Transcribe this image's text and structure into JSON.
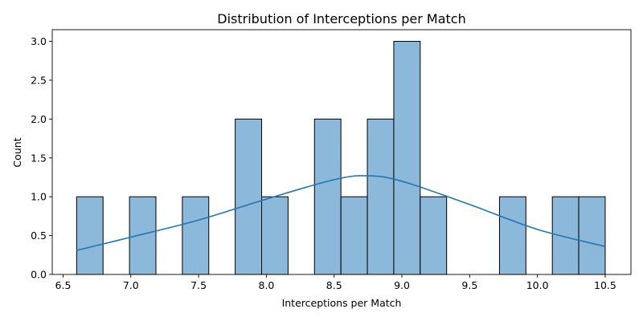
{
  "chart_data": {
    "type": "bar",
    "subtype": "histogram",
    "title": "Distribution of Interceptions per Match",
    "xlabel": "Interceptions per Match",
    "ylabel": "Count",
    "xlim": [
      6.42,
      10.69
    ],
    "ylim": [
      0.0,
      3.15
    ],
    "xticks": [
      6.5,
      7.0,
      7.5,
      8.0,
      8.5,
      9.0,
      9.5,
      10.0,
      10.5
    ],
    "xtick_labels": [
      "6.5",
      "7.0",
      "7.5",
      "8.0",
      "8.5",
      "9.0",
      "9.5",
      "10.0",
      "10.5"
    ],
    "yticks": [
      0.0,
      0.5,
      1.0,
      1.5,
      2.0,
      2.5,
      3.0
    ],
    "ytick_labels": [
      "0.0",
      "0.5",
      "1.0",
      "1.5",
      "2.0",
      "2.5",
      "3.0"
    ],
    "bins": [
      {
        "x0": 6.6,
        "x1": 6.795,
        "count": 1
      },
      {
        "x0": 6.795,
        "x1": 6.99,
        "count": 0
      },
      {
        "x0": 6.99,
        "x1": 7.185,
        "count": 1
      },
      {
        "x0": 7.185,
        "x1": 7.38,
        "count": 0
      },
      {
        "x0": 7.38,
        "x1": 7.575,
        "count": 1
      },
      {
        "x0": 7.575,
        "x1": 7.77,
        "count": 0
      },
      {
        "x0": 7.77,
        "x1": 7.965,
        "count": 2
      },
      {
        "x0": 7.965,
        "x1": 8.16,
        "count": 1
      },
      {
        "x0": 8.16,
        "x1": 8.355,
        "count": 0
      },
      {
        "x0": 8.355,
        "x1": 8.55,
        "count": 2
      },
      {
        "x0": 8.55,
        "x1": 8.745,
        "count": 1
      },
      {
        "x0": 8.745,
        "x1": 8.94,
        "count": 2
      },
      {
        "x0": 8.94,
        "x1": 9.135,
        "count": 3
      },
      {
        "x0": 9.135,
        "x1": 9.33,
        "count": 1
      },
      {
        "x0": 9.33,
        "x1": 9.525,
        "count": 0
      },
      {
        "x0": 9.525,
        "x1": 9.72,
        "count": 0
      },
      {
        "x0": 9.72,
        "x1": 9.915,
        "count": 1
      },
      {
        "x0": 9.915,
        "x1": 10.11,
        "count": 0
      },
      {
        "x0": 10.11,
        "x1": 10.305,
        "count": 1
      },
      {
        "x0": 10.305,
        "x1": 10.5,
        "count": 1
      }
    ],
    "kde": {
      "x": [
        6.6,
        7.0,
        7.5,
        8.0,
        8.5,
        8.75,
        9.0,
        9.5,
        10.0,
        10.5
      ],
      "y": [
        0.31,
        0.48,
        0.7,
        0.97,
        1.22,
        1.27,
        1.2,
        0.9,
        0.58,
        0.36
      ]
    },
    "grid": false,
    "colors": {
      "bar_fill": "#8cb8d9",
      "bar_edge": "#000000",
      "kde_line": "#1f77b4"
    }
  }
}
